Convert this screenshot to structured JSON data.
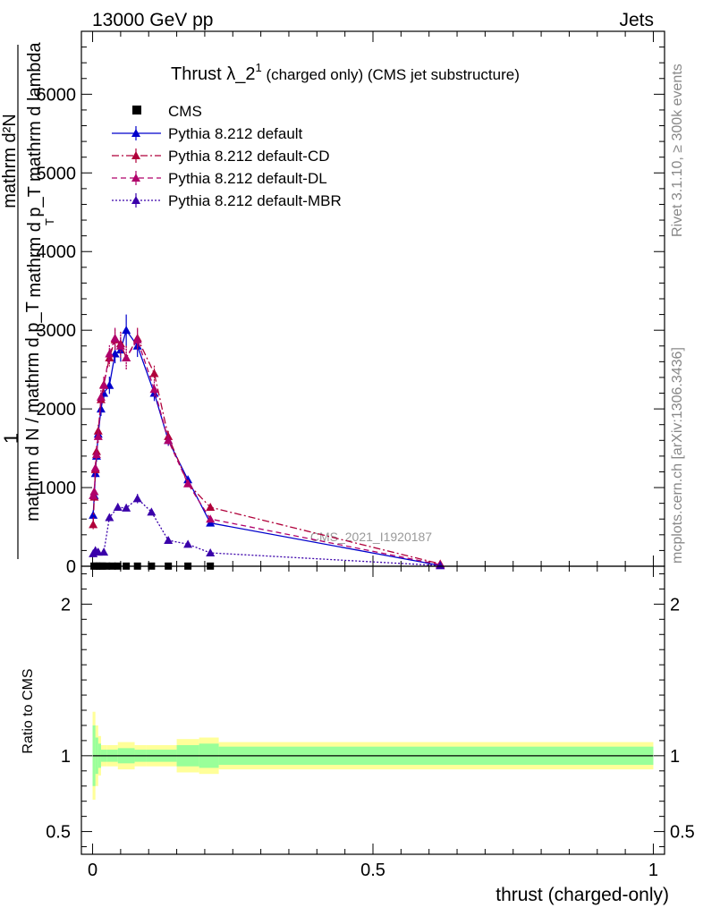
{
  "header": {
    "left": "13000 GeV pp",
    "right": "Jets"
  },
  "side_text": {
    "rivet": "Rivet 3.1.10, ≥ 300k events",
    "mcplots": "mcplots.cern.ch [arXiv:1306.3436]"
  },
  "watermark": "CMS_2021_I1920187",
  "colors": {
    "cms": "#000000",
    "default": "#0000cc",
    "cd": "#b0003a",
    "dl": "#b0006a",
    "mbr": "#3a00aa",
    "band_yellow": "#ffff99",
    "band_green": "#99ff99"
  },
  "chart_data": [
    {
      "type": "scatter",
      "panel": "main",
      "title_main": "Thrust λ_2",
      "title_sup": "1",
      "title_rest": " (charged only) (CMS jet substructure)",
      "ylabel_top": "1",
      "ylabel_num_lines": [
        "mathrm d²N",
        "mathrm d p_T mathrm d lambda"
      ],
      "ylabel_num_sub": "T",
      "ylabel_den": "mathrm d N / mathrm d p_T",
      "xlim": [
        -0.02,
        1.02
      ],
      "ylim": [
        0,
        6800
      ],
      "yticks": [
        0,
        1000,
        2000,
        3000,
        4000,
        5000,
        6000
      ],
      "ytick_labels": [
        "0",
        "1000",
        "2000",
        "3000",
        "4000",
        "5000",
        "6000"
      ],
      "legend_position": "top-left",
      "series": [
        {
          "name": "CMS",
          "key": "cms",
          "marker": "square",
          "x": [
            0.0025,
            0.0075,
            0.0125,
            0.0175,
            0.025,
            0.035,
            0.045,
            0.06,
            0.08,
            0.105,
            0.135,
            0.17,
            0.21
          ],
          "y": [
            2,
            2,
            2,
            2,
            2,
            2,
            2,
            2,
            2,
            2,
            2,
            2,
            2
          ]
        },
        {
          "name": "Pythia 8.212 default",
          "key": "default",
          "marker": "triangle",
          "dash": "",
          "x": [
            0.001,
            0.003,
            0.005,
            0.007,
            0.01,
            0.015,
            0.02,
            0.03,
            0.04,
            0.05,
            0.06,
            0.08,
            0.11,
            0.135,
            0.17,
            0.21,
            0.62
          ],
          "y": [
            650,
            900,
            1180,
            1400,
            1680,
            2000,
            2200,
            2300,
            2700,
            2750,
            3000,
            2800,
            2200,
            1600,
            1100,
            550,
            10
          ],
          "yerr": [
            60,
            60,
            60,
            70,
            80,
            90,
            100,
            110,
            120,
            150,
            200,
            140,
            100,
            70,
            50,
            30,
            5
          ]
        },
        {
          "name": "Pythia 8.212 default-CD",
          "key": "cd",
          "marker": "triangle",
          "dash": "8,3,2,3",
          "x": [
            0.001,
            0.003,
            0.005,
            0.007,
            0.01,
            0.015,
            0.02,
            0.03,
            0.04,
            0.05,
            0.06,
            0.08,
            0.11,
            0.135,
            0.17,
            0.21,
            0.62
          ],
          "y": [
            530,
            880,
            1230,
            1460,
            1720,
            2120,
            2310,
            2650,
            2880,
            2830,
            2650,
            2900,
            2450,
            1650,
            1050,
            750,
            30
          ],
          "yerr": [
            60,
            60,
            70,
            70,
            80,
            90,
            100,
            110,
            130,
            150,
            150,
            130,
            100,
            70,
            50,
            40,
            5
          ]
        },
        {
          "name": "Pythia 8.212 default-DL",
          "key": "dl",
          "marker": "triangle",
          "dash": "6,4",
          "x": [
            0.001,
            0.003,
            0.005,
            0.007,
            0.01,
            0.015,
            0.02,
            0.03,
            0.04,
            0.05,
            0.06,
            0.08,
            0.11,
            0.135,
            0.17,
            0.21,
            0.62
          ],
          "y": [
            900,
            950,
            1250,
            1420,
            1650,
            2150,
            2300,
            2700,
            2900,
            2800,
            2650,
            2880,
            2250,
            1600,
            1050,
            600,
            20
          ],
          "yerr": [
            60,
            60,
            70,
            70,
            80,
            90,
            100,
            110,
            130,
            150,
            150,
            130,
            100,
            70,
            50,
            40,
            5
          ]
        },
        {
          "name": "Pythia 8.212 default-MBR",
          "key": "mbr",
          "marker": "triangle",
          "dash": "2,2",
          "x": [
            0.001,
            0.005,
            0.01,
            0.02,
            0.03,
            0.045,
            0.06,
            0.08,
            0.105,
            0.135,
            0.17,
            0.21,
            0.62
          ],
          "y": [
            160,
            200,
            180,
            180,
            620,
            750,
            740,
            860,
            690,
            330,
            280,
            170,
            8
          ],
          "yerr": [
            20,
            20,
            20,
            20,
            40,
            50,
            50,
            60,
            40,
            25,
            20,
            15,
            3
          ]
        }
      ]
    },
    {
      "type": "area",
      "panel": "ratio",
      "ylabel": "Ratio to CMS",
      "xlabel": "thrust (charged-only)",
      "xlim": [
        -0.02,
        1.02
      ],
      "ylim": [
        0.35,
        2.25
      ],
      "yticks": [
        0.5,
        1,
        2
      ],
      "ytick_labels": [
        "0.5",
        "1",
        "2"
      ],
      "xticks": [
        0,
        0.5,
        1
      ],
      "xtick_labels": [
        "0",
        "0.5",
        "1"
      ],
      "reference_line": 1,
      "bin_edges": [
        0.0,
        0.005,
        0.01,
        0.015,
        0.025,
        0.045,
        0.075,
        0.095,
        0.15,
        0.19,
        0.225,
        1.0
      ],
      "band_yellow": [
        0.29,
        0.2,
        0.13,
        0.07,
        0.07,
        0.09,
        0.07,
        0.07,
        0.11,
        0.12,
        0.09
      ],
      "band_green": [
        0.2,
        0.12,
        0.08,
        0.04,
        0.04,
        0.05,
        0.04,
        0.04,
        0.07,
        0.08,
        0.06
      ]
    }
  ]
}
